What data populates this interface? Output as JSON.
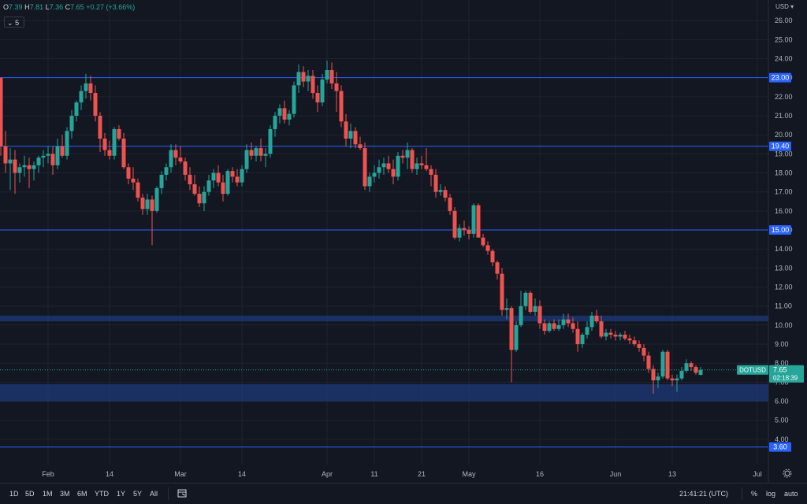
{
  "header": {
    "o_label": "O",
    "o_value": "7.39",
    "h_label": "H",
    "h_value": "7.81",
    "l_label": "L",
    "l_value": "7.36",
    "c_label": "C",
    "c_value": "7.65",
    "change": "+0.27 (+3.66%)",
    "indicator_count": "5",
    "currency": "USD"
  },
  "colors": {
    "background": "#131722",
    "up": "#26a69a",
    "down": "#ef5350",
    "level_line": "#2962ff",
    "zone": "#1e3a7a",
    "grid": "#1f2330"
  },
  "chart_data": {
    "type": "candlestick",
    "symbol": "DOTUSD",
    "last_price": "7.65",
    "countdown": "02:18:39",
    "ylim": [
      3.0,
      27.0
    ],
    "y_ticks": [
      "4.00",
      "5.00",
      "6.00",
      "7.00",
      "8.00",
      "9.00",
      "10.00",
      "11.00",
      "12.00",
      "13.00",
      "14.00",
      "15.00",
      "16.00",
      "17.00",
      "18.00",
      "19.00",
      "20.00",
      "21.00",
      "22.00",
      "23.00",
      "24.00",
      "25.00",
      "26.00"
    ],
    "x_ticks": [
      {
        "label": "Feb",
        "day": 10
      },
      {
        "label": "14",
        "day": 23
      },
      {
        "label": "Mar",
        "day": 38
      },
      {
        "label": "14",
        "day": 51
      },
      {
        "label": "Apr",
        "day": 69
      },
      {
        "label": "11",
        "day": 79
      },
      {
        "label": "21",
        "day": 89
      },
      {
        "label": "May",
        "day": 99
      },
      {
        "label": "16",
        "day": 114
      },
      {
        "label": "Jun",
        "day": 130
      },
      {
        "label": "13",
        "day": 142
      },
      {
        "label": "Jul",
        "day": 160
      }
    ],
    "levels": [
      "23.00",
      "19.40",
      "15.00",
      "3.60"
    ],
    "zones": [
      [
        10.2,
        10.5
      ],
      [
        6.0,
        6.9
      ]
    ],
    "ohlc": [
      [
        23.0,
        23.0,
        18.9,
        19.4
      ],
      [
        19.4,
        20.2,
        18.0,
        18.5
      ],
      [
        18.5,
        19.3,
        17.1,
        18.7
      ],
      [
        18.7,
        19.2,
        16.9,
        18.0
      ],
      [
        18.0,
        18.5,
        17.5,
        18.3
      ],
      [
        18.3,
        18.9,
        17.8,
        18.4
      ],
      [
        18.4,
        18.8,
        17.2,
        18.2
      ],
      [
        18.2,
        18.6,
        17.6,
        18.4
      ],
      [
        18.4,
        18.9,
        18.0,
        18.8
      ],
      [
        18.8,
        19.2,
        18.3,
        18.9
      ],
      [
        18.9,
        19.4,
        18.5,
        19.0
      ],
      [
        19.0,
        19.4,
        17.9,
        18.4
      ],
      [
        18.4,
        19.8,
        18.2,
        19.4
      ],
      [
        19.4,
        20.0,
        18.8,
        18.9
      ],
      [
        18.9,
        20.4,
        18.7,
        20.2
      ],
      [
        20.2,
        21.3,
        19.8,
        21.0
      ],
      [
        21.0,
        21.8,
        20.7,
        21.7
      ],
      [
        21.7,
        22.6,
        21.3,
        22.3
      ],
      [
        22.3,
        23.2,
        21.9,
        22.7
      ],
      [
        22.7,
        23.1,
        21.8,
        22.2
      ],
      [
        22.2,
        22.6,
        20.7,
        21.0
      ],
      [
        21.0,
        21.2,
        19.1,
        19.8
      ],
      [
        19.8,
        20.1,
        18.9,
        19.2
      ],
      [
        19.2,
        19.7,
        18.7,
        18.9
      ],
      [
        18.9,
        20.4,
        18.7,
        20.3
      ],
      [
        20.3,
        20.5,
        19.7,
        19.8
      ],
      [
        19.8,
        20.1,
        18.2,
        18.3
      ],
      [
        18.3,
        18.5,
        17.4,
        17.7
      ],
      [
        17.7,
        18.3,
        17.1,
        17.5
      ],
      [
        17.5,
        17.7,
        16.5,
        16.7
      ],
      [
        16.7,
        16.9,
        15.8,
        16.1
      ],
      [
        16.1,
        16.9,
        15.8,
        16.6
      ],
      [
        16.6,
        16.8,
        14.2,
        16.0
      ],
      [
        16.0,
        17.3,
        15.9,
        17.2
      ],
      [
        17.2,
        18.1,
        16.9,
        17.9
      ],
      [
        17.9,
        18.5,
        17.6,
        18.3
      ],
      [
        18.3,
        19.5,
        18.0,
        19.2
      ],
      [
        19.2,
        19.5,
        18.4,
        18.8
      ],
      [
        18.8,
        19.4,
        18.5,
        18.6
      ],
      [
        18.6,
        18.8,
        17.6,
        17.9
      ],
      [
        17.9,
        18.3,
        17.1,
        17.4
      ],
      [
        17.4,
        17.9,
        16.8,
        16.9
      ],
      [
        16.9,
        17.3,
        16.2,
        16.4
      ],
      [
        16.4,
        17.3,
        16.0,
        17.0
      ],
      [
        17.0,
        17.9,
        16.8,
        17.6
      ],
      [
        17.6,
        18.2,
        17.2,
        18.0
      ],
      [
        18.0,
        18.4,
        17.3,
        17.5
      ],
      [
        17.5,
        17.9,
        16.5,
        16.9
      ],
      [
        16.9,
        18.2,
        16.8,
        18.1
      ],
      [
        18.1,
        18.3,
        17.5,
        17.8
      ],
      [
        17.8,
        18.2,
        17.3,
        17.5
      ],
      [
        17.5,
        18.4,
        17.3,
        18.2
      ],
      [
        18.2,
        19.5,
        18.0,
        19.2
      ],
      [
        19.2,
        19.6,
        18.7,
        18.9
      ],
      [
        18.9,
        19.4,
        18.6,
        19.3
      ],
      [
        19.3,
        19.8,
        18.6,
        18.9
      ],
      [
        18.9,
        19.3,
        18.3,
        19.0
      ],
      [
        19.0,
        20.5,
        18.8,
        20.3
      ],
      [
        20.3,
        21.2,
        19.9,
        21.0
      ],
      [
        21.0,
        21.6,
        20.6,
        21.4
      ],
      [
        21.4,
        21.8,
        20.6,
        20.8
      ],
      [
        20.8,
        21.3,
        20.5,
        21.1
      ],
      [
        21.1,
        22.8,
        20.9,
        22.6
      ],
      [
        22.6,
        23.7,
        22.2,
        23.3
      ],
      [
        23.3,
        23.6,
        22.5,
        22.8
      ],
      [
        22.8,
        23.4,
        22.3,
        23.1
      ],
      [
        23.1,
        23.4,
        21.9,
        22.2
      ],
      [
        22.2,
        22.6,
        21.2,
        21.7
      ],
      [
        21.7,
        23.2,
        21.5,
        22.9
      ],
      [
        22.9,
        23.9,
        22.7,
        23.4
      ],
      [
        23.4,
        23.8,
        22.4,
        22.7
      ],
      [
        22.7,
        23.3,
        21.2,
        22.3
      ],
      [
        22.3,
        22.6,
        20.4,
        20.7
      ],
      [
        20.7,
        21.1,
        19.4,
        19.8
      ],
      [
        19.8,
        20.6,
        19.3,
        20.2
      ],
      [
        20.2,
        20.4,
        19.3,
        19.5
      ],
      [
        19.5,
        19.9,
        19.2,
        19.3
      ],
      [
        19.3,
        19.6,
        17.1,
        17.3
      ],
      [
        17.3,
        18.0,
        17.0,
        17.8
      ],
      [
        17.8,
        18.4,
        17.5,
        18.0
      ],
      [
        18.0,
        18.7,
        17.7,
        18.3
      ],
      [
        18.3,
        18.8,
        17.9,
        18.5
      ],
      [
        18.5,
        18.9,
        18.0,
        18.2
      ],
      [
        18.2,
        18.7,
        17.4,
        17.8
      ],
      [
        17.8,
        19.1,
        17.6,
        18.9
      ],
      [
        18.9,
        19.2,
        18.5,
        18.8
      ],
      [
        18.8,
        19.6,
        18.2,
        19.2
      ],
      [
        19.2,
        19.3,
        18.0,
        18.2
      ],
      [
        18.2,
        18.8,
        17.9,
        18.5
      ],
      [
        18.5,
        18.9,
        18.2,
        18.4
      ],
      [
        18.4,
        19.3,
        18.1,
        18.2
      ],
      [
        18.2,
        18.4,
        17.3,
        17.9
      ],
      [
        17.9,
        18.2,
        16.7,
        17.0
      ],
      [
        17.0,
        17.4,
        16.8,
        17.1
      ],
      [
        17.1,
        17.3,
        16.5,
        16.7
      ],
      [
        16.7,
        16.9,
        15.8,
        16.0
      ],
      [
        16.0,
        16.2,
        14.5,
        14.6
      ],
      [
        14.6,
        15.3,
        14.4,
        15.1
      ],
      [
        15.1,
        15.5,
        14.7,
        15.0
      ],
      [
        15.0,
        15.2,
        14.5,
        14.8
      ],
      [
        14.8,
        16.4,
        14.6,
        16.3
      ],
      [
        16.3,
        16.4,
        14.8,
        14.6
      ],
      [
        14.6,
        14.8,
        14.1,
        14.2
      ],
      [
        14.2,
        14.4,
        13.7,
        13.9
      ],
      [
        13.9,
        14.0,
        13.1,
        13.3
      ],
      [
        13.3,
        13.4,
        12.4,
        12.7
      ],
      [
        12.7,
        13.0,
        10.5,
        10.8
      ],
      [
        10.8,
        11.4,
        10.3,
        10.9
      ],
      [
        10.9,
        11.0,
        7.0,
        8.7
      ],
      [
        8.7,
        10.2,
        8.6,
        10.0
      ],
      [
        10.0,
        11.8,
        9.9,
        11.0
      ],
      [
        11.0,
        11.8,
        10.8,
        11.7
      ],
      [
        11.7,
        11.8,
        10.6,
        10.7
      ],
      [
        10.7,
        11.4,
        10.5,
        11.0
      ],
      [
        11.0,
        11.3,
        9.8,
        10.1
      ],
      [
        10.1,
        10.3,
        9.5,
        9.7
      ],
      [
        9.7,
        10.2,
        9.6,
        10.1
      ],
      [
        10.1,
        10.3,
        9.7,
        9.8
      ],
      [
        9.8,
        10.3,
        9.7,
        10.0
      ],
      [
        10.0,
        10.6,
        9.8,
        10.3
      ],
      [
        10.3,
        10.6,
        9.9,
        10.1
      ],
      [
        10.1,
        10.4,
        9.6,
        9.8
      ],
      [
        9.8,
        10.2,
        8.6,
        9.0
      ],
      [
        9.0,
        9.6,
        8.8,
        9.5
      ],
      [
        9.5,
        10.2,
        9.3,
        9.9
      ],
      [
        9.9,
        10.7,
        9.7,
        10.5
      ],
      [
        10.5,
        10.8,
        10.1,
        10.2
      ],
      [
        10.2,
        10.5,
        9.3,
        9.4
      ],
      [
        9.4,
        9.8,
        9.2,
        9.6
      ],
      [
        9.6,
        9.8,
        9.3,
        9.5
      ],
      [
        9.5,
        9.7,
        9.2,
        9.4
      ],
      [
        9.4,
        9.6,
        9.2,
        9.5
      ],
      [
        9.5,
        9.7,
        9.2,
        9.3
      ],
      [
        9.3,
        9.5,
        9.0,
        9.2
      ],
      [
        9.2,
        9.4,
        8.9,
        9.0
      ],
      [
        9.0,
        9.2,
        8.6,
        8.8
      ],
      [
        8.8,
        9.0,
        8.1,
        8.4
      ],
      [
        8.4,
        8.6,
        7.5,
        7.7
      ],
      [
        7.7,
        7.9,
        6.4,
        7.1
      ],
      [
        7.1,
        7.5,
        6.7,
        7.3
      ],
      [
        7.3,
        8.7,
        7.2,
        8.6
      ],
      [
        8.6,
        8.7,
        7.1,
        7.2
      ],
      [
        7.2,
        7.4,
        6.8,
        7.1
      ],
      [
        7.1,
        7.4,
        6.5,
        7.2
      ],
      [
        7.2,
        7.8,
        7.1,
        7.6
      ],
      [
        7.6,
        8.2,
        7.5,
        8.0
      ],
      [
        8.0,
        8.1,
        7.6,
        7.8
      ],
      [
        7.8,
        7.9,
        7.4,
        7.5
      ],
      [
        7.39,
        7.81,
        7.36,
        7.65
      ]
    ]
  },
  "bottom": {
    "ranges": [
      "1D",
      "5D",
      "1M",
      "3M",
      "6M",
      "YTD",
      "1Y",
      "5Y",
      "All"
    ],
    "time": "21:41:21 (UTC)",
    "percent": "%",
    "log": "log",
    "auto": "auto"
  }
}
